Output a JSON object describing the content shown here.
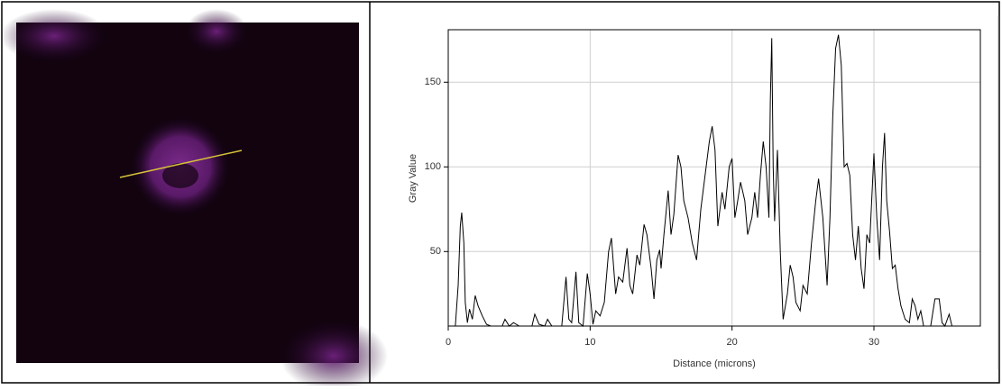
{
  "chart_data": {
    "type": "line",
    "xlabel": "Distance (microns)",
    "ylabel": "Gray Value",
    "xlim": [
      0,
      37.5
    ],
    "ylim": [
      6,
      181
    ],
    "xticks": [
      0,
      10,
      20,
      30
    ],
    "yticks": [
      50,
      100,
      150
    ],
    "grid": true,
    "x": [
      0,
      0.5,
      0.7,
      0.85,
      0.95,
      1.1,
      1.2,
      1.35,
      1.5,
      1.7,
      1.9,
      2.1,
      2.4,
      2.7,
      3.0,
      3.8,
      4.0,
      4.3,
      4.6,
      5.0,
      5.9,
      6.1,
      6.4,
      6.8,
      7.0,
      7.3,
      8.0,
      8.3,
      8.5,
      8.7,
      9.0,
      9.2,
      9.5,
      9.8,
      10.0,
      10.2,
      10.4,
      10.7,
      11.0,
      11.3,
      11.5,
      11.8,
      12.0,
      12.3,
      12.6,
      12.8,
      13.0,
      13.3,
      13.5,
      13.8,
      14.0,
      14.3,
      14.5,
      14.7,
      14.9,
      15.0,
      15.2,
      15.5,
      15.7,
      15.9,
      16.2,
      16.4,
      16.6,
      16.9,
      17.2,
      17.5,
      17.8,
      18.1,
      18.4,
      18.6,
      18.8,
      19.0,
      19.3,
      19.5,
      19.8,
      20.0,
      20.2,
      20.4,
      20.6,
      20.9,
      21.1,
      21.4,
      21.6,
      21.8,
      22.0,
      22.2,
      22.4,
      22.6,
      22.7,
      22.8,
      22.9,
      23.0,
      23.2,
      23.4,
      23.6,
      23.9,
      24.1,
      24.3,
      24.5,
      24.8,
      25.0,
      25.3,
      25.6,
      25.9,
      26.1,
      26.4,
      26.7,
      26.9,
      27.1,
      27.3,
      27.5,
      27.7,
      27.9,
      28.1,
      28.3,
      28.5,
      28.7,
      28.9,
      29.1,
      29.3,
      29.5,
      29.7,
      30.0,
      30.2,
      30.4,
      30.6,
      30.75,
      30.9,
      31.1,
      31.3,
      31.5,
      31.7,
      31.9,
      32.2,
      32.5,
      32.7,
      32.9,
      33.1,
      33.3,
      33.5,
      34.0,
      34.3,
      34.6,
      34.8,
      35.0,
      35.3,
      35.5,
      37.4
    ],
    "series": [
      {
        "color": "#000000",
        "values": [
          6,
          6,
          30,
          65,
          73,
          55,
          20,
          8,
          16,
          10,
          24,
          18,
          12,
          7,
          6,
          6,
          10,
          6,
          8,
          6,
          6,
          13,
          7,
          6,
          10,
          6,
          6,
          35,
          10,
          8,
          38,
          8,
          6,
          37,
          25,
          7,
          15,
          12,
          20,
          50,
          58,
          25,
          35,
          32,
          52,
          30,
          25,
          48,
          42,
          66,
          60,
          40,
          22,
          45,
          51,
          40,
          60,
          86,
          60,
          72,
          107,
          100,
          80,
          70,
          55,
          45,
          75,
          95,
          115,
          124,
          110,
          65,
          85,
          75,
          100,
          105,
          70,
          80,
          91,
          80,
          60,
          70,
          85,
          70,
          95,
          115,
          100,
          70,
          140,
          176,
          100,
          68,
          110,
          50,
          10,
          25,
          42,
          35,
          20,
          15,
          30,
          25,
          55,
          80,
          93,
          70,
          30,
          70,
          130,
          170,
          178,
          160,
          100,
          102,
          95,
          60,
          45,
          65,
          40,
          28,
          60,
          55,
          108,
          70,
          45,
          100,
          120,
          80,
          62,
          40,
          42,
          28,
          18,
          10,
          8,
          22,
          18,
          10,
          15,
          6,
          6,
          22,
          22,
          8,
          6,
          13,
          6,
          6
        ]
      }
    ]
  }
}
